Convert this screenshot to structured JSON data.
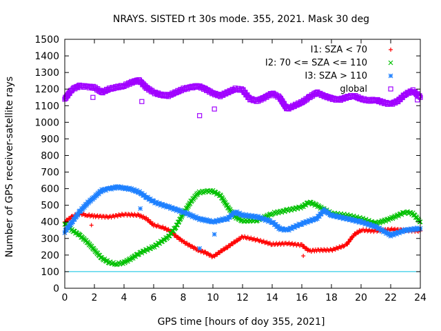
{
  "chart_data": {
    "type": "scatter",
    "title": "NRAYS. SISTED rt 30s mode. 355, 2021. Mask 30 deg",
    "xlabel": "GPS time [hours of doy 355, 2021]",
    "ylabel": "Number of GPS receiver-satellite rays",
    "xlim": [
      0,
      24
    ],
    "ylim": [
      0,
      1500
    ],
    "xticks": [
      0,
      2,
      4,
      6,
      8,
      10,
      12,
      14,
      16,
      18,
      20,
      22,
      24
    ],
    "yticks": [
      0,
      100,
      200,
      300,
      400,
      500,
      600,
      700,
      800,
      900,
      1000,
      1100,
      1200,
      1300,
      1400,
      1500
    ],
    "reference_line": {
      "y": 100,
      "color": "#00c0e0"
    },
    "legend_position": "top-right",
    "series": [
      {
        "name": "I1: SZA < 70",
        "marker": "plus",
        "color": "#ff0000",
        "x": [
          0,
          0.5,
          1,
          1.5,
          2,
          3,
          4,
          5,
          5.5,
          6,
          6.5,
          7,
          8,
          9,
          9.5,
          10,
          11,
          12,
          13,
          14,
          15,
          16,
          16.5,
          17,
          18,
          19,
          19.5,
          20,
          21,
          22,
          23,
          24
        ],
        "values": [
          400,
          430,
          450,
          440,
          435,
          430,
          445,
          440,
          420,
          380,
          370,
          350,
          280,
          230,
          215,
          190,
          250,
          310,
          290,
          265,
          270,
          260,
          225,
          230,
          230,
          260,
          320,
          350,
          345,
          355,
          350,
          345
        ],
        "outliers": [
          [
            1.8,
            380
          ],
          [
            16.1,
            195
          ]
        ]
      },
      {
        "name": "I2: 70 <= SZA <= 110",
        "marker": "cross",
        "color": "#00c000",
        "x": [
          0,
          0.5,
          1,
          1.5,
          2,
          2.5,
          3,
          3.5,
          4,
          4.5,
          5,
          6,
          7,
          7.5,
          8,
          8.5,
          9,
          9.5,
          10,
          10.5,
          11,
          11.5,
          12,
          13,
          14,
          15,
          16,
          16.5,
          17,
          18,
          19,
          20,
          21,
          22,
          23,
          23.5,
          24
        ],
        "values": [
          390,
          350,
          320,
          280,
          230,
          180,
          155,
          145,
          155,
          180,
          210,
          250,
          310,
          370,
          450,
          520,
          575,
          585,
          585,
          560,
          490,
          430,
          405,
          410,
          450,
          470,
          490,
          520,
          500,
          450,
          440,
          420,
          390,
          420,
          460,
          450,
          400
        ]
      },
      {
        "name": "I3: SZA > 110",
        "marker": "star",
        "color": "#1e80ff",
        "x": [
          0,
          0.5,
          1,
          1.5,
          2,
          2.5,
          3,
          3.5,
          4,
          4.5,
          5,
          5.5,
          6,
          7,
          8,
          9,
          10,
          11,
          11.5,
          12,
          13,
          14,
          14.5,
          15,
          16,
          17,
          17.5,
          18,
          19,
          20,
          21,
          22,
          23,
          24
        ],
        "values": [
          340,
          400,
          460,
          510,
          550,
          590,
          600,
          610,
          605,
          595,
          580,
          550,
          520,
          490,
          460,
          420,
          400,
          420,
          460,
          440,
          430,
          400,
          360,
          350,
          390,
          420,
          470,
          440,
          420,
          400,
          370,
          320,
          350,
          360
        ],
        "outliers": [
          [
            5.1,
            480
          ],
          [
            9.1,
            240
          ],
          [
            10.1,
            325
          ]
        ]
      },
      {
        "name": "global",
        "marker": "square",
        "color": "#a000ff",
        "x": [
          0,
          0.5,
          1,
          1.5,
          2,
          2.5,
          3,
          3.5,
          4,
          4.5,
          5,
          5.5,
          6,
          6.5,
          7,
          7.5,
          8,
          8.5,
          9,
          9.5,
          10,
          10.5,
          11,
          11.5,
          12,
          12.5,
          13,
          13.5,
          14,
          14.5,
          15,
          15.5,
          16,
          16.5,
          17,
          17.5,
          18,
          18.5,
          19,
          19.5,
          20,
          20.5,
          21,
          21.5,
          22,
          22.5,
          23,
          23.5,
          24
        ],
        "values": [
          1140,
          1200,
          1220,
          1215,
          1210,
          1180,
          1200,
          1210,
          1220,
          1240,
          1255,
          1210,
          1180,
          1165,
          1160,
          1180,
          1200,
          1210,
          1220,
          1200,
          1175,
          1160,
          1180,
          1200,
          1195,
          1140,
          1130,
          1150,
          1175,
          1150,
          1080,
          1100,
          1120,
          1150,
          1180,
          1160,
          1145,
          1135,
          1150,
          1160,
          1140,
          1130,
          1135,
          1120,
          1110,
          1130,
          1170,
          1190,
          1150
        ],
        "outliers": [
          [
            1.9,
            1150
          ],
          [
            5.2,
            1125
          ],
          [
            9.1,
            1040
          ],
          [
            10.1,
            1080
          ],
          [
            23.8,
            1135
          ]
        ]
      }
    ]
  }
}
